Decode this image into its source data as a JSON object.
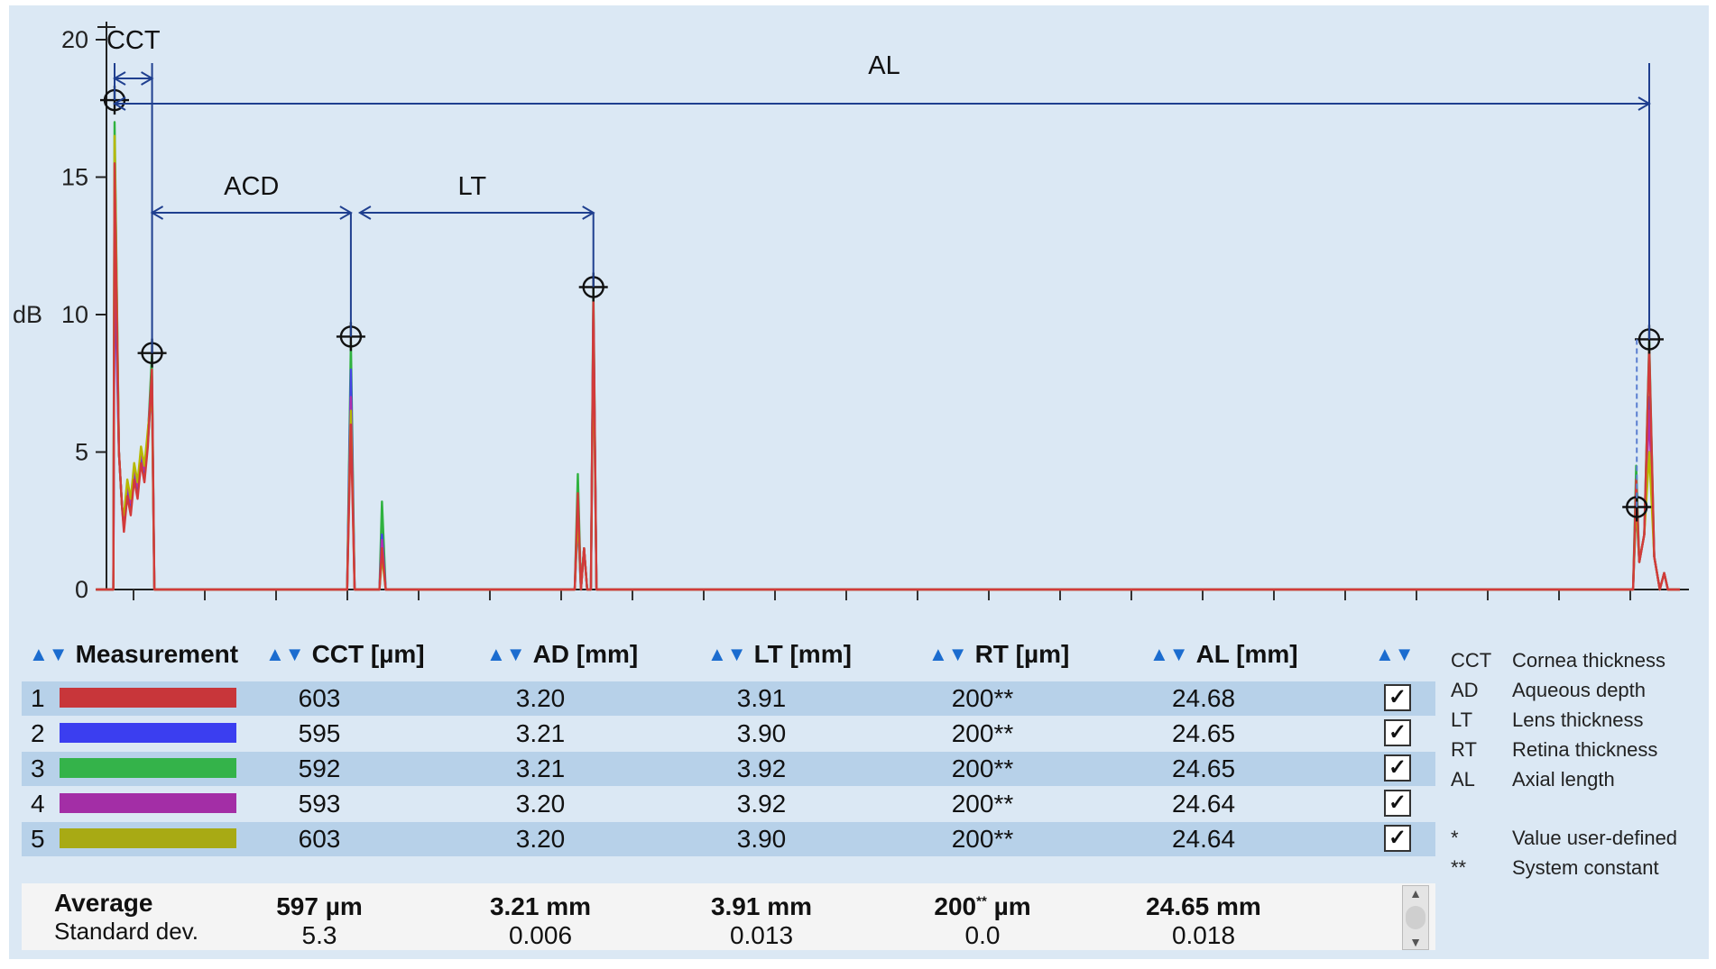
{
  "chart_data": {
    "type": "line",
    "ylabel": "dB",
    "ylim": [
      0,
      20
    ],
    "yticks": [
      "0",
      "5",
      "10",
      "15",
      "20"
    ],
    "grid": false,
    "series": [
      {
        "color": "#d23a3a"
      },
      {
        "color": "#4545e6"
      },
      {
        "color": "#2fb23f"
      },
      {
        "color": "#b030b0"
      },
      {
        "color": "#b7b800"
      }
    ],
    "markers": [
      {
        "x": 0.0,
        "y": 17.8
      },
      {
        "x": 0.603,
        "y": 8.6
      },
      {
        "x": 3.8,
        "y": 9.2
      },
      {
        "x": 7.7,
        "y": 11.0
      },
      {
        "x": 24.68,
        "y": 9.1
      },
      {
        "x": 24.48,
        "y": 3.0
      }
    ],
    "annotations": {
      "cct": "CCT",
      "acd": "ACD",
      "lt": "LT",
      "al": "AL"
    }
  },
  "table": {
    "headers": [
      "Measurement",
      "CCT [µm]",
      "AD [mm]",
      "LT [mm]",
      "RT [µm]",
      "AL [mm]"
    ],
    "rows": [
      {
        "id": "1",
        "color": "#c8363a",
        "cct": "603",
        "ad": "3.20",
        "lt": "3.91",
        "rt": "200**",
        "al": "24.68",
        "checked": true
      },
      {
        "id": "2",
        "color": "#3b3ef0",
        "cct": "595",
        "ad": "3.21",
        "lt": "3.90",
        "rt": "200**",
        "al": "24.65",
        "checked": true
      },
      {
        "id": "3",
        "color": "#34b34a",
        "cct": "592",
        "ad": "3.21",
        "lt": "3.92",
        "rt": "200**",
        "al": "24.65",
        "checked": true
      },
      {
        "id": "4",
        "color": "#a32ea6",
        "cct": "593",
        "ad": "3.20",
        "lt": "3.92",
        "rt": "200**",
        "al": "24.64",
        "checked": true
      },
      {
        "id": "5",
        "color": "#a8aa14",
        "cct": "603",
        "ad": "3.20",
        "lt": "3.90",
        "rt": "200**",
        "al": "24.64",
        "checked": true
      }
    ],
    "checkmark": "✓",
    "average": {
      "label": "Average",
      "cct": "597 µm",
      "ad": "3.21 mm",
      "lt": "3.91 mm",
      "rt_value": "200",
      "rt_sup": "**",
      "rt_unit": " µm",
      "al": "24.65 mm"
    },
    "stddev": {
      "label": "Standard dev.",
      "cct": "5.3",
      "ad": "0.006",
      "lt": "0.013",
      "rt": "0.0",
      "al": "0.018"
    }
  },
  "legend": [
    {
      "abbr": "CCT",
      "desc": "Cornea thickness"
    },
    {
      "abbr": "AD",
      "desc": "Aqueous depth"
    },
    {
      "abbr": "LT",
      "desc": "Lens thickness"
    },
    {
      "abbr": "RT",
      "desc": "Retina thickness"
    },
    {
      "abbr": "AL",
      "desc": "Axial length"
    },
    {
      "abbr": "*",
      "desc": "Value user-defined"
    },
    {
      "abbr": "**",
      "desc": "System constant"
    }
  ],
  "icons": {
    "sort": "sort-arrows-icon",
    "check": "checkbox-icon",
    "scroll": "scrollbar"
  }
}
